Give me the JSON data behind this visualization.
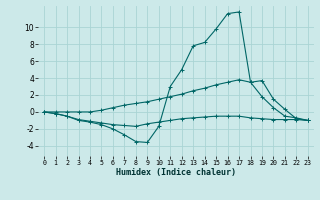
{
  "xlabel": "Humidex (Indice chaleur)",
  "bg_color": "#cce9e9",
  "line_color": "#006666",
  "grid_color": "#aad4d4",
  "xlim": [
    -0.5,
    23.5
  ],
  "ylim": [
    -5.2,
    12.5
  ],
  "yticks": [
    -4,
    -2,
    0,
    2,
    4,
    6,
    8,
    10
  ],
  "xticks": [
    0,
    1,
    2,
    3,
    4,
    5,
    6,
    7,
    8,
    9,
    10,
    11,
    12,
    13,
    14,
    15,
    16,
    17,
    18,
    19,
    20,
    21,
    22,
    23
  ],
  "line1_x": [
    0,
    1,
    2,
    3,
    4,
    5,
    6,
    7,
    8,
    9,
    10,
    11,
    12,
    13,
    14,
    15,
    16,
    17,
    18,
    19,
    20,
    21,
    22,
    23
  ],
  "line1_y": [
    0.0,
    -0.2,
    -0.5,
    -0.9,
    -1.1,
    -1.3,
    -1.5,
    -1.6,
    -1.7,
    -1.4,
    -1.2,
    -1.0,
    -0.8,
    -0.7,
    -0.6,
    -0.5,
    -0.5,
    -0.5,
    -0.7,
    -0.8,
    -0.9,
    -0.9,
    -0.9,
    -1.0
  ],
  "line2_x": [
    0,
    1,
    2,
    3,
    4,
    5,
    6,
    7,
    8,
    9,
    10,
    11,
    12,
    13,
    14,
    15,
    16,
    17,
    18,
    19,
    20,
    21,
    22,
    23
  ],
  "line2_y": [
    0.0,
    -0.2,
    -0.5,
    -1.0,
    -1.2,
    -1.5,
    -2.0,
    -2.7,
    -3.5,
    -3.6,
    -1.7,
    3.0,
    5.0,
    7.8,
    8.2,
    9.8,
    11.6,
    11.8,
    3.5,
    1.8,
    0.5,
    -0.5,
    -0.7,
    -1.0
  ],
  "line3_x": [
    0,
    1,
    2,
    3,
    4,
    5,
    6,
    7,
    8,
    9,
    10,
    11,
    12,
    13,
    14,
    15,
    16,
    17,
    18,
    19,
    20,
    21,
    22,
    23
  ],
  "line3_y": [
    0.0,
    0.0,
    0.0,
    0.0,
    0.0,
    0.2,
    0.5,
    0.8,
    1.0,
    1.2,
    1.5,
    1.8,
    2.1,
    2.5,
    2.8,
    3.2,
    3.5,
    3.8,
    3.5,
    3.7,
    1.5,
    0.3,
    -0.8,
    -1.0
  ]
}
